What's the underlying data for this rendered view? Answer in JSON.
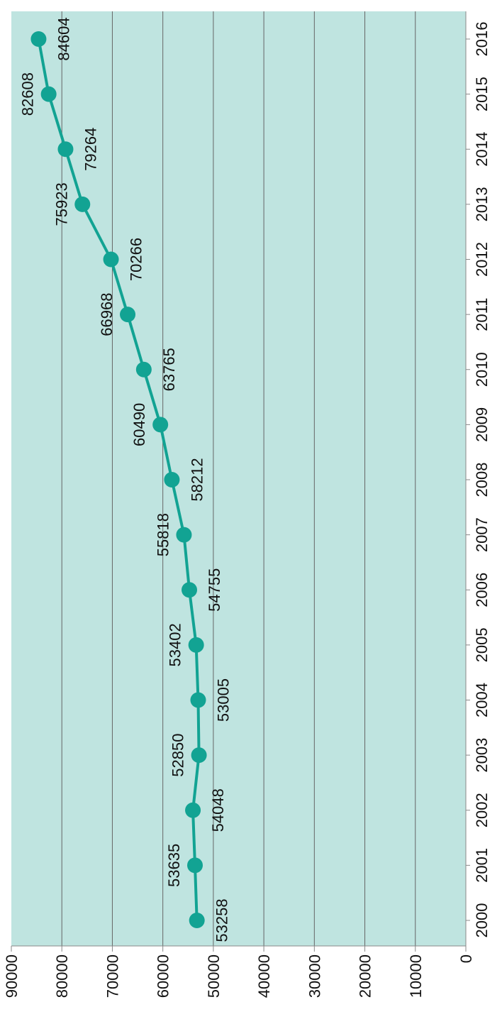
{
  "chart_data": {
    "type": "line",
    "orientation": "rotated-90-clockwise",
    "x": [
      "2000",
      "2001",
      "2002",
      "2003",
      "2004",
      "2005",
      "2006",
      "2007",
      "2008",
      "2009",
      "2010",
      "2011",
      "2012",
      "2013",
      "2014",
      "2015",
      "2016"
    ],
    "series": [
      {
        "values": [
          53258,
          53635,
          54048,
          52850,
          53005,
          53402,
          54755,
          55818,
          58212,
          60490,
          63765,
          66968,
          70266,
          75923,
          79264,
          82608,
          84604
        ]
      }
    ],
    "data_labels": [
      "53258",
      "53635",
      "54048",
      "52850",
      "53005",
      "53402",
      "54755",
      "55818",
      "58212",
      "60490",
      "63765",
      "66968",
      "70266",
      "75923",
      "79264",
      "82608",
      "84604"
    ],
    "y_ticks": [
      "0",
      "10000",
      "20000",
      "30000",
      "40000",
      "50000",
      "60000",
      "70000",
      "80000",
      "90000"
    ],
    "ylim": [
      0,
      90000
    ],
    "grid": true,
    "colors": {
      "line": "#12a393",
      "plot_bg": "#bfe4e0",
      "grid": "#666666",
      "axis": "#888888"
    }
  }
}
